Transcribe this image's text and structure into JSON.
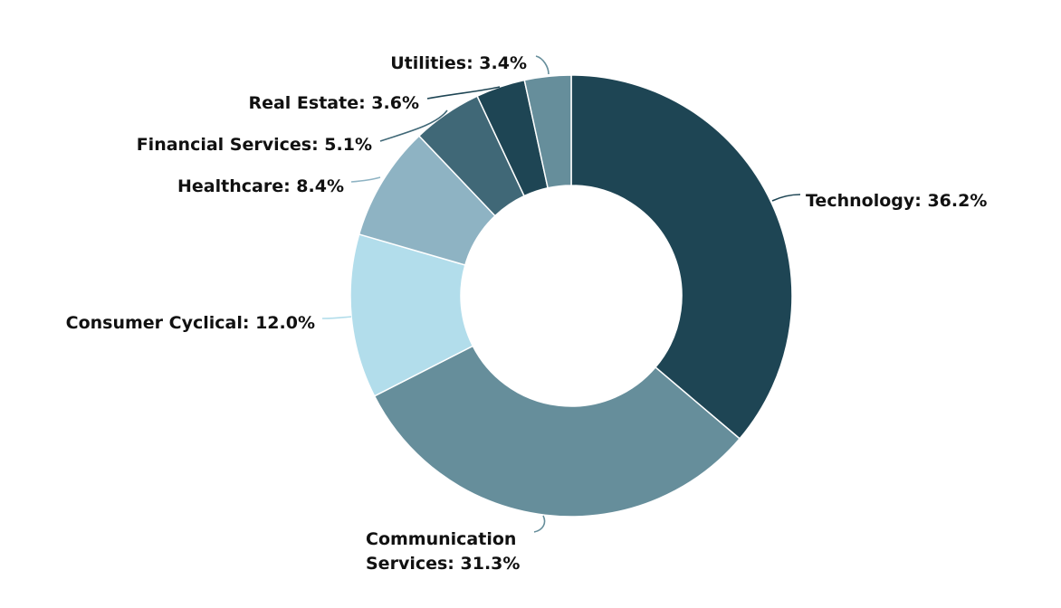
{
  "chart_data": {
    "type": "pie",
    "variant": "donut",
    "slices": [
      {
        "label": "Technology",
        "value": 36.2,
        "text": "Technology: 36.2%",
        "color": "#1e4554"
      },
      {
        "label": "Communication Services",
        "value": 31.3,
        "text": "Communication Services: 31.3%",
        "text_lines": [
          "Communication",
          "Services: 31.3%"
        ],
        "color": "#668e9b"
      },
      {
        "label": "Consumer Cyclical",
        "value": 12.0,
        "text": "Consumer Cyclical: 12.0%",
        "color": "#b2ddeb"
      },
      {
        "label": "Healthcare",
        "value": 8.4,
        "text": "Healthcare: 8.4%",
        "color": "#8eb3c3"
      },
      {
        "label": "Financial Services",
        "value": 5.1,
        "text": "Financial Services: 5.1%",
        "color": "#406877"
      },
      {
        "label": "Real Estate",
        "value": 3.6,
        "text": "Real Estate: 3.6%",
        "color": "#1e4554"
      },
      {
        "label": "Utilities",
        "value": 3.4,
        "text": "Utilities: 3.4%",
        "color": "#668e9b"
      }
    ],
    "start_position": "top",
    "direction": "clockwise",
    "legend": "none",
    "data_labels": "outside with connectors"
  }
}
